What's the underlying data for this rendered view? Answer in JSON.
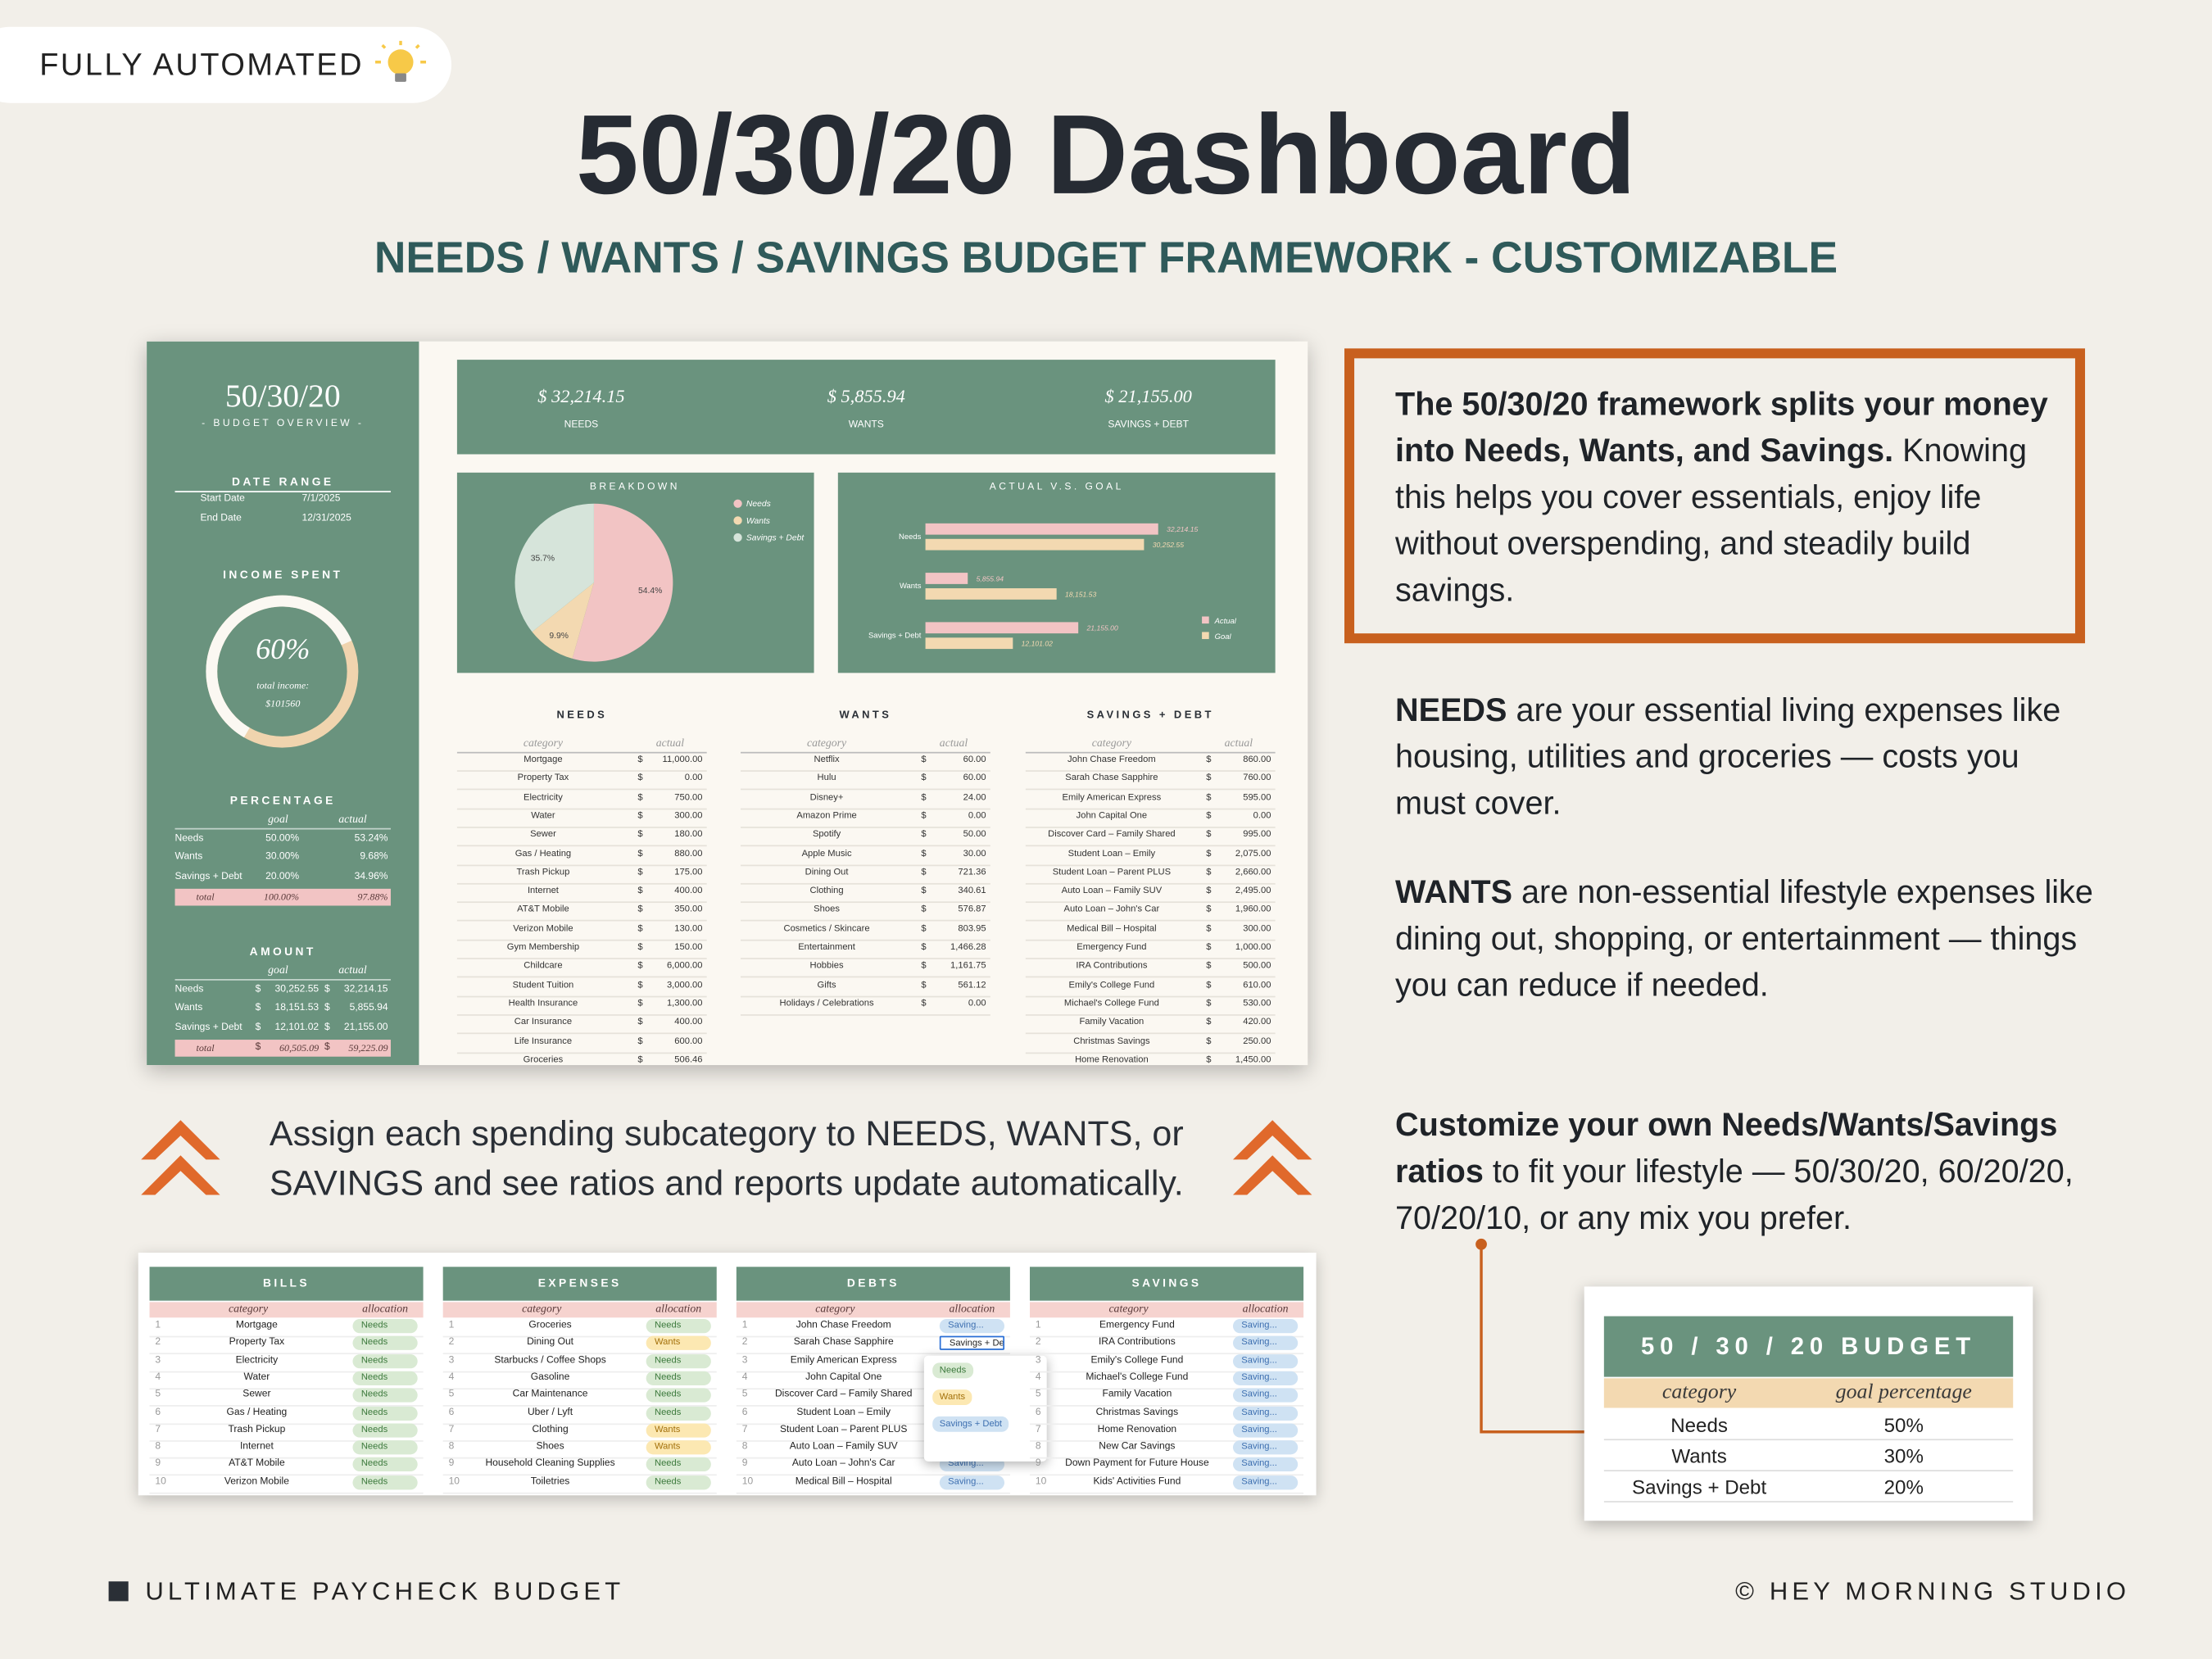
{
  "badge": "FULLY AUTOMATED",
  "title": "50/30/20 Dashboard",
  "subtitle": "NEEDS / WANTS / SAVINGS BUDGET FRAMEWORK - CUSTOMIZABLE",
  "dashboard": {
    "sidebar": {
      "title": "50/30/20",
      "subtitle": "- BUDGET OVERVIEW -",
      "date_range": {
        "heading": "DATE RANGE",
        "rows": [
          [
            "Start Date",
            "7/1/2025"
          ],
          [
            "End Date",
            "12/31/2025"
          ]
        ]
      },
      "income_spent": {
        "heading": "INCOME SPENT",
        "value": 60,
        "value_label": "60%",
        "caption": "total income:",
        "income": "$101560"
      },
      "percentage": {
        "heading": "PERCENTAGE",
        "columns": [
          "goal",
          "actual"
        ],
        "rows": [
          [
            "Needs",
            "50.00%",
            "53.24%"
          ],
          [
            "Wants",
            "30.00%",
            "9.68%"
          ],
          [
            "Savings + Debt",
            "20.00%",
            "34.96%"
          ]
        ],
        "total": [
          "total",
          "100.00%",
          "97.88%"
        ]
      },
      "amount": {
        "heading": "AMOUNT",
        "columns": [
          "goal",
          "actual"
        ],
        "currency": "$",
        "rows": [
          [
            "Needs",
            "30,252.55",
            "32,214.15"
          ],
          [
            "Wants",
            "18,151.53",
            "5,855.94"
          ],
          [
            "Savings + Debt",
            "12,101.02",
            "21,155.00"
          ]
        ],
        "total": [
          "total",
          "60,505.09",
          "59,225.09"
        ]
      }
    },
    "kpis": [
      {
        "value": "$ 32,214.15",
        "label": "NEEDS"
      },
      {
        "value": "$ 5,855.94",
        "label": "WANTS"
      },
      {
        "value": "$ 21,155.00",
        "label": "SAVINGS + DEBT"
      }
    ],
    "breakdown": {
      "type": "pie",
      "title": "BREAKDOWN",
      "labels": [
        "Needs",
        "Wants",
        "Savings + Debt"
      ],
      "values": [
        54.4,
        9.9,
        35.7
      ],
      "value_labels": [
        "54.4%",
        "9.9%",
        "35.7%"
      ],
      "colors": [
        "#f2c4c4",
        "#f3d9b1",
        "#d6e4da"
      ]
    },
    "actual_vs_goal": {
      "type": "bar",
      "orientation": "horizontal",
      "title": "ACTUAL V.S. GOAL",
      "categories": [
        "Needs",
        "Wants",
        "Savings + Debt"
      ],
      "series": [
        {
          "name": "Actual",
          "color": "#f2c4c4",
          "values": [
            32214.15,
            5855.94,
            21155.0
          ],
          "value_labels": [
            "32,214.15",
            "5,855.94",
            "21,155.00"
          ]
        },
        {
          "name": "Goal",
          "color": "#f3d9b1",
          "values": [
            30252.55,
            18151.53,
            12101.02
          ],
          "value_labels": [
            "30,252.55",
            "18,151.53",
            "12,101.02"
          ]
        }
      ]
    },
    "tables": [
      {
        "title": "NEEDS",
        "columns": [
          "category",
          "actual"
        ],
        "currency": "$",
        "rows": [
          [
            "Mortgage",
            "11,000.00"
          ],
          [
            "Property Tax",
            "0.00"
          ],
          [
            "Electricity",
            "750.00"
          ],
          [
            "Water",
            "300.00"
          ],
          [
            "Sewer",
            "180.00"
          ],
          [
            "Gas / Heating",
            "880.00"
          ],
          [
            "Trash Pickup",
            "175.00"
          ],
          [
            "Internet",
            "400.00"
          ],
          [
            "AT&T Mobile",
            "350.00"
          ],
          [
            "Verizon Mobile",
            "130.00"
          ],
          [
            "Gym Membership",
            "150.00"
          ],
          [
            "Childcare",
            "6,000.00"
          ],
          [
            "Student Tuition",
            "3,000.00"
          ],
          [
            "Health Insurance",
            "1,300.00"
          ],
          [
            "Car Insurance",
            "400.00"
          ],
          [
            "Life Insurance",
            "600.00"
          ],
          [
            "Groceries",
            "506.46"
          ]
        ]
      },
      {
        "title": "WANTS",
        "columns": [
          "category",
          "actual"
        ],
        "currency": "$",
        "rows": [
          [
            "Netflix",
            "60.00"
          ],
          [
            "Hulu",
            "60.00"
          ],
          [
            "Disney+",
            "24.00"
          ],
          [
            "Amazon Prime",
            "0.00"
          ],
          [
            "Spotify",
            "50.00"
          ],
          [
            "Apple Music",
            "30.00"
          ],
          [
            "Dining Out",
            "721.36"
          ],
          [
            "Clothing",
            "340.61"
          ],
          [
            "Shoes",
            "576.87"
          ],
          [
            "Cosmetics / Skincare",
            "803.95"
          ],
          [
            "Entertainment",
            "1,466.28"
          ],
          [
            "Hobbies",
            "1,161.75"
          ],
          [
            "Gifts",
            "561.12"
          ],
          [
            "Holidays / Celebrations",
            "0.00"
          ]
        ]
      },
      {
        "title": "SAVINGS + DEBT",
        "columns": [
          "category",
          "actual"
        ],
        "currency": "$",
        "rows": [
          [
            "John Chase Freedom",
            "860.00"
          ],
          [
            "Sarah Chase Sapphire",
            "760.00"
          ],
          [
            "Emily American Express",
            "595.00"
          ],
          [
            "John Capital One",
            "0.00"
          ],
          [
            "Discover Card – Family Shared",
            "995.00"
          ],
          [
            "Student Loan – Emily",
            "2,075.00"
          ],
          [
            "Student Loan – Parent PLUS",
            "2,660.00"
          ],
          [
            "Auto Loan – Family SUV",
            "2,495.00"
          ],
          [
            "Auto Loan – John's Car",
            "1,960.00"
          ],
          [
            "Medical Bill – Hospital",
            "300.00"
          ],
          [
            "Emergency Fund",
            "1,000.00"
          ],
          [
            "IRA Contributions",
            "500.00"
          ],
          [
            "Emily's College Fund",
            "610.00"
          ],
          [
            "Michael's College Fund",
            "530.00"
          ],
          [
            "Family Vacation",
            "420.00"
          ],
          [
            "Christmas Savings",
            "250.00"
          ],
          [
            "Home Renovation",
            "1,450.00"
          ]
        ]
      }
    ]
  },
  "caption": [
    "Assign each spending subcategory to NEEDS, WANTS, or",
    "SAVINGS and see ratios and reports update automatically."
  ],
  "allocation_tables": [
    {
      "title": "BILLS",
      "columns": [
        "category",
        "allocation"
      ],
      "rows": [
        [
          1,
          "Mortgage",
          "Needs"
        ],
        [
          2,
          "Property Tax",
          "Needs"
        ],
        [
          3,
          "Electricity",
          "Needs"
        ],
        [
          4,
          "Water",
          "Needs"
        ],
        [
          5,
          "Sewer",
          "Needs"
        ],
        [
          6,
          "Gas / Heating",
          "Needs"
        ],
        [
          7,
          "Trash Pickup",
          "Needs"
        ],
        [
          8,
          "Internet",
          "Needs"
        ],
        [
          9,
          "AT&T Mobile",
          "Needs"
        ],
        [
          10,
          "Verizon Mobile",
          "Needs"
        ]
      ]
    },
    {
      "title": "EXPENSES",
      "columns": [
        "category",
        "allocation"
      ],
      "rows": [
        [
          1,
          "Groceries",
          "Needs"
        ],
        [
          2,
          "Dining Out",
          "Wants"
        ],
        [
          3,
          "Starbucks / Coffee Shops",
          "Needs"
        ],
        [
          4,
          "Gasoline",
          "Needs"
        ],
        [
          5,
          "Car Maintenance",
          "Needs"
        ],
        [
          6,
          "Uber / Lyft",
          "Needs"
        ],
        [
          7,
          "Clothing",
          "Wants"
        ],
        [
          8,
          "Shoes",
          "Wants"
        ],
        [
          9,
          "Household Cleaning Supplies",
          "Needs"
        ],
        [
          10,
          "Toiletries",
          "Needs"
        ]
      ]
    },
    {
      "title": "DEBTS",
      "columns": [
        "category",
        "allocation"
      ],
      "rows": [
        [
          1,
          "John Chase Freedom",
          "Saving..."
        ],
        [
          2,
          "Sarah Chase Sapphire",
          "Savings + Debt"
        ],
        [
          3,
          "Emily American Express",
          null
        ],
        [
          4,
          "John Capital One",
          null
        ],
        [
          5,
          "Discover Card – Family Shared",
          null
        ],
        [
          6,
          "Student Loan – Emily",
          null
        ],
        [
          7,
          "Student Loan – Parent PLUS",
          null
        ],
        [
          8,
          "Auto Loan – Family SUV",
          null
        ],
        [
          9,
          "Auto Loan – John's Car",
          "Saving..."
        ],
        [
          10,
          "Medical Bill – Hospital",
          "Saving..."
        ]
      ],
      "dropdown": [
        "Needs",
        "Wants",
        "Savings + Debt"
      ]
    },
    {
      "title": "SAVINGS",
      "columns": [
        "category",
        "allocation"
      ],
      "rows": [
        [
          1,
          "Emergency Fund",
          "Saving..."
        ],
        [
          2,
          "IRA Contributions",
          "Saving..."
        ],
        [
          3,
          "Emily's College Fund",
          "Saving..."
        ],
        [
          4,
          "Michael's College Fund",
          "Saving..."
        ],
        [
          5,
          "Family Vacation",
          "Saving..."
        ],
        [
          6,
          "Christmas Savings",
          "Saving..."
        ],
        [
          7,
          "Home Renovation",
          "Saving..."
        ],
        [
          8,
          "New Car Savings",
          "Saving..."
        ],
        [
          9,
          "Down Payment for Future House",
          "Saving..."
        ],
        [
          10,
          "Kids' Activities Fund",
          "Saving..."
        ]
      ]
    }
  ],
  "notes": [
    {
      "bold": "The 50/30/20 framework splits your money into Needs, Wants, and Savings.",
      "text": " Knowing this helps you cover essentials, enjoy life without overspending, and steadily build savings."
    },
    {
      "bold": "NEEDS",
      "text": " are your essential living expenses like housing, utilities and groceries — costs you must cover."
    },
    {
      "bold": "WANTS",
      "text": " are non-essential lifestyle expenses like dining out, shopping, or entertainment — things you can reduce if needed."
    },
    {
      "bold": "Customize your own Needs/Wants/Savings ratios",
      "text": " to fit your lifestyle — 50/30/20, 60/20/20, 70/20/10, or any mix you prefer."
    }
  ],
  "budget_card": {
    "title": "50 / 30 / 20 BUDGET",
    "columns": [
      "category",
      "goal percentage"
    ],
    "rows": [
      [
        "Needs",
        "50%"
      ],
      [
        "Wants",
        "30%"
      ],
      [
        "Savings + Debt",
        "20%"
      ]
    ]
  },
  "footer": {
    "left": "ULTIMATE PAYCHECK BUDGET",
    "right": "© HEY MORNING STUDIO"
  }
}
